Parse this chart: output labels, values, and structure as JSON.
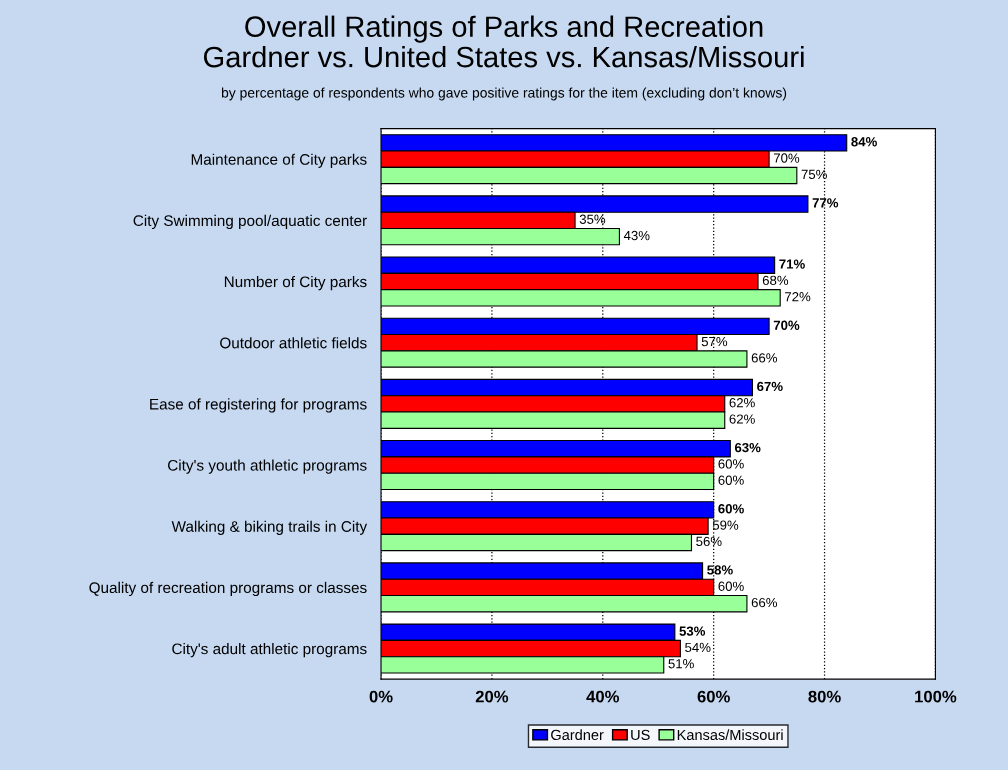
{
  "chart_data": {
    "type": "bar",
    "orientation": "horizontal",
    "title": "Overall Ratings of Parks and Recreation\nGardner vs. United States vs. Kansas/Missouri",
    "subtitle": "by percentage of respondents who gave positive ratings for the item (excluding don’t knows)",
    "categories": [
      "Maintenance of City parks",
      "City Swimming pool/aquatic center",
      "Number of City parks",
      "Outdoor athletic fields",
      "Ease of registering for programs",
      "City's youth athletic programs",
      "Walking & biking trails in City",
      "Quality of recreation programs or classes",
      "City's adult athletic programs"
    ],
    "series": [
      {
        "name": "Gardner",
        "color": "#0000ff",
        "values": [
          84,
          77,
          71,
          70,
          67,
          63,
          60,
          58,
          53
        ],
        "value_labels": [
          "84%",
          "77%",
          "71%",
          "70%",
          "67%",
          "63%",
          "60%",
          "58%",
          "53%"
        ]
      },
      {
        "name": "US",
        "color": "#ff0000",
        "values": [
          70,
          35,
          68,
          57,
          62,
          60,
          59,
          60,
          54
        ],
        "value_labels": [
          "70%",
          "35%",
          "68%",
          "57%",
          "62%",
          "60%",
          "59%",
          "60%",
          "54%"
        ]
      },
      {
        "name": "Kansas/Missouri",
        "color": "#99ff99",
        "values": [
          75,
          43,
          72,
          66,
          62,
          60,
          56,
          66,
          51
        ],
        "value_labels": [
          "75%",
          "43%",
          "72%",
          "66%",
          "62%",
          "60%",
          "56%",
          "66%",
          "51%"
        ]
      }
    ],
    "xlim": [
      0,
      100
    ],
    "xticks": [
      {
        "value": 0,
        "label": "0%"
      },
      {
        "value": 20,
        "label": "20%"
      },
      {
        "value": 40,
        "label": "40%"
      },
      {
        "value": 60,
        "label": "60%"
      },
      {
        "value": 80,
        "label": "80%"
      },
      {
        "value": 100,
        "label": "100%"
      }
    ],
    "grid": "x",
    "legend": "bottom"
  }
}
